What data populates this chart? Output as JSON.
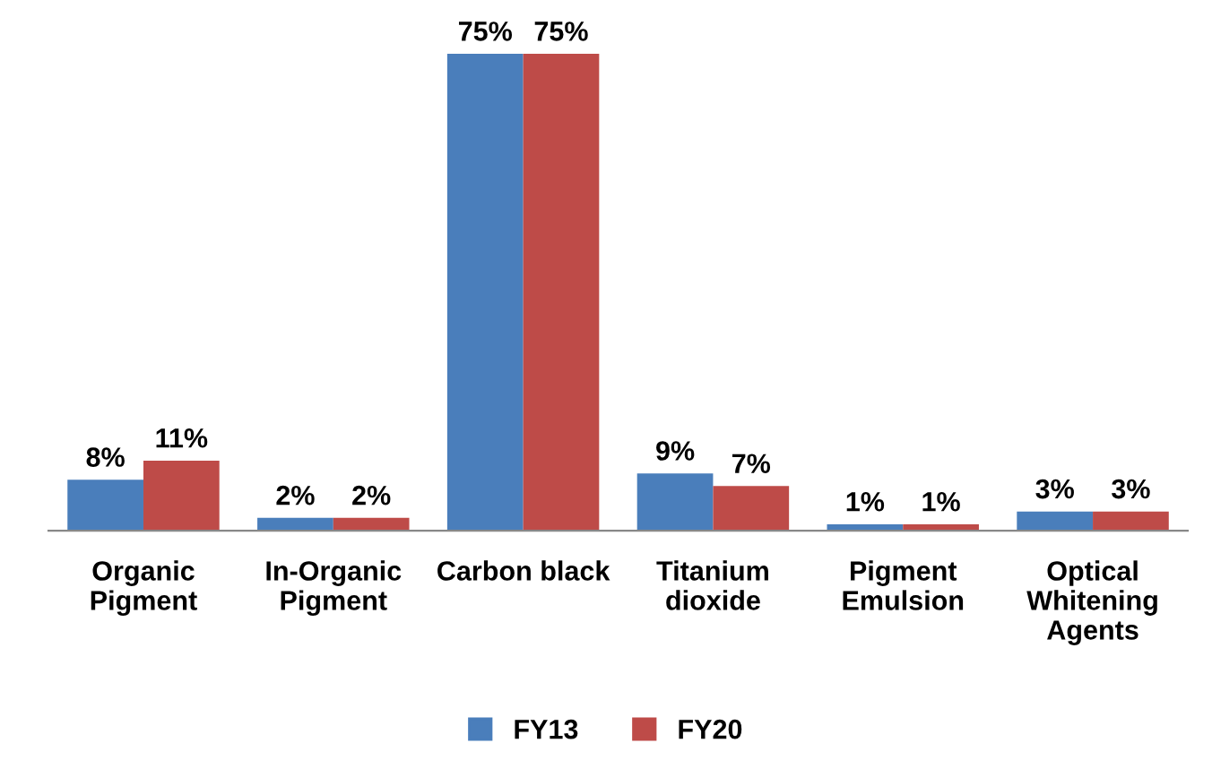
{
  "chart_data": {
    "type": "bar",
    "categories": [
      "Organic\nPigment",
      "In-Organic\nPigment",
      "Carbon black",
      "Titanium\ndioxide",
      "Pigment\nEmulsion",
      "Optical\nWhitening\nAgents"
    ],
    "series": [
      {
        "name": "FY13",
        "color": "#4a7ebb",
        "values": [
          8,
          2,
          75,
          9,
          1,
          3
        ],
        "value_labels": [
          "8%",
          "2%",
          "75%",
          "9%",
          "1%",
          "3%"
        ]
      },
      {
        "name": "FY20",
        "color": "#be4b48",
        "values": [
          11,
          2,
          75,
          7,
          1,
          3
        ],
        "value_labels": [
          "11%",
          "2%",
          "75%",
          "7%",
          "1%",
          "3%"
        ]
      }
    ],
    "legend": "bottom",
    "grid": false
  }
}
